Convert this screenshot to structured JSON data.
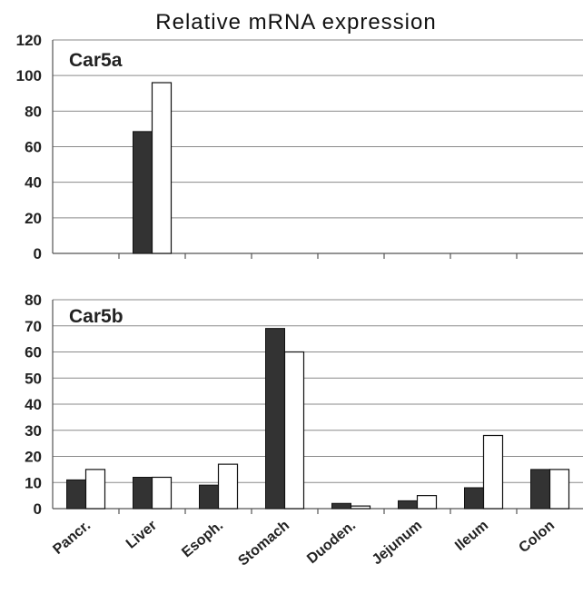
{
  "title": "Relative mRNA expression",
  "colors": {
    "dark_series": "#333333",
    "light_series": "#ffffff",
    "grid": "#8a8a8a"
  },
  "chart_data": [
    {
      "type": "bar",
      "panel_label": "Car5a",
      "categories": [
        "Pancr.",
        "Liver",
        "Esoph.",
        "Stomach",
        "Duoden.",
        "Jejunum",
        "Ileum",
        "Colon"
      ],
      "series": [
        {
          "values": [
            0,
            68.5,
            0,
            0,
            0,
            0,
            0,
            0
          ]
        },
        {
          "values": [
            0,
            96,
            0,
            0,
            0,
            0,
            0,
            0
          ]
        }
      ],
      "ylim": [
        0,
        120
      ],
      "yticks": [
        0,
        20,
        40,
        60,
        80,
        100,
        120
      ],
      "grid": true
    },
    {
      "type": "bar",
      "panel_label": "Car5b",
      "categories": [
        "Pancr.",
        "Liver",
        "Esoph.",
        "Stomach",
        "Duoden.",
        "Jejunum",
        "Ileum",
        "Colon"
      ],
      "series": [
        {
          "values": [
            11,
            12,
            9,
            69,
            2,
            3,
            8,
            15
          ]
        },
        {
          "values": [
            15,
            12,
            17,
            60,
            1,
            5,
            28,
            15
          ]
        }
      ],
      "ylim": [
        0,
        80
      ],
      "yticks": [
        0,
        10,
        20,
        30,
        40,
        50,
        60,
        70,
        80
      ],
      "grid": true
    }
  ]
}
